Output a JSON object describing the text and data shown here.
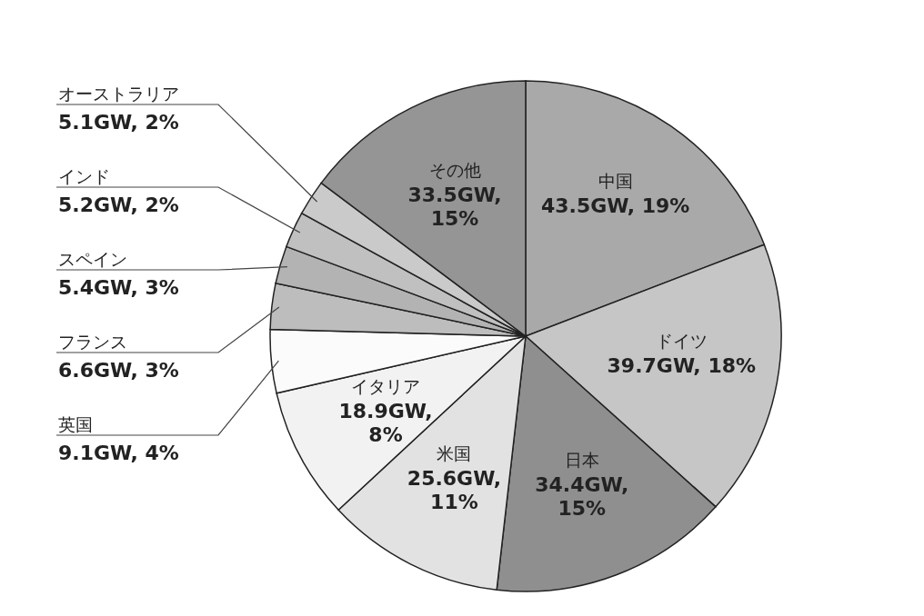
{
  "chart_data": {
    "type": "pie",
    "categories": [
      "中国",
      "ドイツ",
      "日本",
      "米国",
      "イタリア",
      "英国",
      "フランス",
      "スペイン",
      "インド",
      "オーストラリア",
      "その他"
    ],
    "values": [
      43.5,
      39.7,
      34.4,
      25.6,
      18.9,
      9.1,
      6.6,
      5.4,
      5.2,
      5.1,
      33.5
    ],
    "value_labels": [
      "43.5GW, 19%",
      "39.7GW, 18%",
      "34.4GW, 15%",
      "25.6GW, 11%",
      "18.9GW, 8%",
      "9.1GW, 4%",
      "6.6GW, 3%",
      "5.4GW, 3%",
      "5.2GW, 2%",
      "5.1GW, 2%",
      "33.5GW, 15%"
    ],
    "colors": [
      "#a9a9a9",
      "#c6c6c6",
      "#8f8f8f",
      "#e2e2e2",
      "#f2f2f2",
      "#fbfbfb",
      "#bdbdbd",
      "#b3b3b3",
      "#c0c0c0",
      "#cacaca",
      "#959595"
    ]
  }
}
